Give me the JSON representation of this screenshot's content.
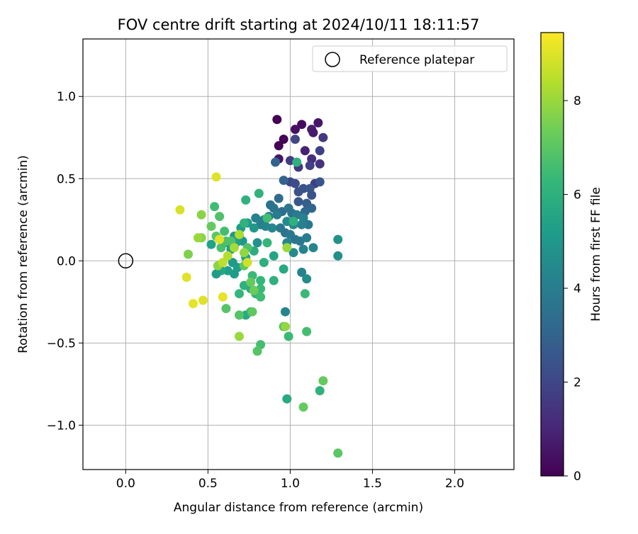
{
  "chart_data": {
    "type": "scatter",
    "title": "FOV centre drift starting at 2024/10/11 18:11:57",
    "xlabel": "Angular distance from reference (arcmin)",
    "ylabel": "Rotation from reference (arcmin)",
    "xlim": [
      -0.26,
      2.36
    ],
    "ylim": [
      -1.27,
      1.35
    ],
    "xticks": [
      0.0,
      0.5,
      1.0,
      1.5,
      2.0
    ],
    "xtick_labels": [
      "0.0",
      "0.5",
      "1.0",
      "1.5",
      "2.0"
    ],
    "yticks": [
      -1.0,
      -0.5,
      0.0,
      0.5,
      1.0
    ],
    "ytick_labels": [
      "−1.0",
      "−0.5",
      "0.0",
      "0.5",
      "1.0"
    ],
    "grid": true,
    "legend": {
      "position": "top-right",
      "entries": [
        {
          "label": "Reference platepar",
          "marker": "open-circle"
        }
      ]
    },
    "reference": {
      "x": 0.0,
      "y": 0.0
    },
    "colorbar": {
      "label": "Hours from first FF file",
      "range": [
        0,
        9.45
      ],
      "ticks": [
        0,
        2,
        4,
        6,
        8
      ],
      "tick_labels": [
        "0",
        "2",
        "4",
        "6",
        "8"
      ],
      "colormap": "viridis"
    },
    "points": [
      [
        0.92,
        0.86,
        0.0
      ],
      [
        0.96,
        0.74,
        0.1
      ],
      [
        0.93,
        0.7,
        0.05
      ],
      [
        1.07,
        0.83,
        0.3
      ],
      [
        1.03,
        0.8,
        0.4
      ],
      [
        1.17,
        0.84,
        0.6
      ],
      [
        1.13,
        0.8,
        0.8
      ],
      [
        1.14,
        0.78,
        0.7
      ],
      [
        1.2,
        0.75,
        1.6
      ],
      [
        0.93,
        0.62,
        0.5
      ],
      [
        1.09,
        0.67,
        0.9
      ],
      [
        1.18,
        0.67,
        1.8
      ],
      [
        1.13,
        0.62,
        1.2
      ],
      [
        1.03,
        0.74,
        2.0
      ],
      [
        1.05,
        0.57,
        1.5
      ],
      [
        1.12,
        0.58,
        1.8
      ],
      [
        1.18,
        0.59,
        1.4
      ],
      [
        1.0,
        0.61,
        1.6
      ],
      [
        1.0,
        0.48,
        2.0
      ],
      [
        1.03,
        0.47,
        2.2
      ],
      [
        1.15,
        0.47,
        1.7
      ],
      [
        1.18,
        0.48,
        2.5
      ],
      [
        1.05,
        0.42,
        2.3
      ],
      [
        1.08,
        0.44,
        2.4
      ],
      [
        1.12,
        0.44,
        2.6
      ],
      [
        1.13,
        0.4,
        2.4
      ],
      [
        1.05,
        0.36,
        2.6
      ],
      [
        1.1,
        0.35,
        2.8
      ],
      [
        1.13,
        0.32,
        3.0
      ],
      [
        1.09,
        0.3,
        3.2
      ],
      [
        0.96,
        0.49,
        3.0
      ],
      [
        0.91,
        0.6,
        3.0
      ],
      [
        0.93,
        0.38,
        3.3
      ],
      [
        0.88,
        0.34,
        3.5
      ],
      [
        0.9,
        0.32,
        3.6
      ],
      [
        0.95,
        0.3,
        3.4
      ],
      [
        0.99,
        0.32,
        3.7
      ],
      [
        1.01,
        0.29,
        3.6
      ],
      [
        1.04,
        0.28,
        3.9
      ],
      [
        1.08,
        0.26,
        4.2
      ],
      [
        0.92,
        0.28,
        3.9
      ],
      [
        0.87,
        0.27,
        4.0
      ],
      [
        0.84,
        0.25,
        4.1
      ],
      [
        0.82,
        0.22,
        4.0
      ],
      [
        0.79,
        0.26,
        4.2
      ],
      [
        0.85,
        0.21,
        4.3
      ],
      [
        0.89,
        0.2,
        4.4
      ],
      [
        0.94,
        0.2,
        3.8
      ],
      [
        0.97,
        0.17,
        3.6
      ],
      [
        1.0,
        0.16,
        3.8
      ],
      [
        1.03,
        0.13,
        3.7
      ],
      [
        1.06,
        0.12,
        3.8
      ],
      [
        1.1,
        0.14,
        4.0
      ],
      [
        1.11,
        0.22,
        3.8
      ],
      [
        1.07,
        0.22,
        4.1
      ],
      [
        1.02,
        0.22,
        4.4
      ],
      [
        0.98,
        0.24,
        4.5
      ],
      [
        0.98,
        0.11,
        4.3
      ],
      [
        1.02,
        0.05,
        4.5
      ],
      [
        1.08,
        0.07,
        4.2
      ],
      [
        1.14,
        0.08,
        4.3
      ],
      [
        1.07,
        -0.07,
        4.2
      ],
      [
        1.1,
        -0.11,
        4.6
      ],
      [
        0.97,
        -0.31,
        4.3
      ],
      [
        1.29,
        0.13,
        4.8
      ],
      [
        1.29,
        0.03,
        4.7
      ],
      [
        0.8,
        0.11,
        4.8
      ],
      [
        0.78,
        0.2,
        5.0
      ],
      [
        0.74,
        0.23,
        5.1
      ],
      [
        0.71,
        0.12,
        5.0
      ],
      [
        0.7,
        0.2,
        5.3
      ],
      [
        0.67,
        0.11,
        5.4
      ],
      [
        0.64,
        0.07,
        5.2
      ],
      [
        0.62,
        0.11,
        5.5
      ],
      [
        0.66,
        0.15,
        5.0
      ],
      [
        0.69,
        0.15,
        5.2
      ],
      [
        0.73,
        0.02,
        5.4
      ],
      [
        0.68,
        -0.04,
        5.3
      ],
      [
        0.66,
        -0.08,
        5.2
      ],
      [
        0.65,
        -0.01,
        5.1
      ],
      [
        0.62,
        -0.06,
        5.3
      ],
      [
        0.58,
        -0.06,
        5.6
      ],
      [
        0.55,
        -0.08,
        5.2
      ],
      [
        0.52,
        0.1,
        5.4
      ],
      [
        0.81,
        0.41,
        6.1
      ],
      [
        0.73,
        0.37,
        6.0
      ],
      [
        0.72,
        0.23,
        6.1
      ],
      [
        0.78,
        0.06,
        5.9
      ],
      [
        0.84,
        -0.01,
        6.0
      ],
      [
        0.86,
        0.11,
        6.2
      ],
      [
        0.9,
        0.03,
        5.5
      ],
      [
        0.96,
        -0.05,
        5.7
      ],
      [
        0.9,
        -0.12,
        6.0
      ],
      [
        0.82,
        -0.12,
        6.2
      ],
      [
        0.77,
        -0.09,
        6.4
      ],
      [
        0.72,
        -0.15,
        6.0
      ],
      [
        0.69,
        -0.2,
        6.2
      ],
      [
        0.76,
        -0.17,
        5.9
      ],
      [
        0.79,
        -0.2,
        6.1
      ],
      [
        0.73,
        -0.33,
        5.7
      ],
      [
        0.76,
        -0.31,
        6.3
      ],
      [
        1.04,
        0.6,
        6.0
      ],
      [
        1.02,
        0.24,
        6.0
      ],
      [
        0.86,
        0.26,
        6.6
      ],
      [
        0.82,
        -0.17,
        6.4
      ],
      [
        0.82,
        -0.22,
        6.5
      ],
      [
        0.96,
        -0.4,
        6.7
      ],
      [
        0.99,
        -0.46,
        6.4
      ],
      [
        1.09,
        -0.2,
        6.4
      ],
      [
        1.1,
        -0.43,
        6.6
      ],
      [
        0.82,
        -0.51,
        6.6
      ],
      [
        0.8,
        -0.55,
        6.9
      ],
      [
        0.98,
        -0.84,
        5.7
      ],
      [
        1.18,
        -0.79,
        6.1
      ],
      [
        1.2,
        -0.73,
        7.2
      ],
      [
        1.08,
        -0.89,
        7.2
      ],
      [
        1.29,
        -1.17,
        7.0
      ],
      [
        0.57,
        0.27,
        6.8
      ],
      [
        0.6,
        0.18,
        6.6
      ],
      [
        0.54,
        0.33,
        6.5
      ],
      [
        0.52,
        0.21,
        7.2
      ],
      [
        0.55,
        0.15,
        7.0
      ],
      [
        0.61,
        0.12,
        6.8
      ],
      [
        0.58,
        0.08,
        6.7
      ],
      [
        0.64,
        0.12,
        6.8
      ],
      [
        0.72,
        -0.03,
        7.1
      ],
      [
        0.76,
        -0.13,
        7.2
      ],
      [
        0.78,
        -0.18,
        7.3
      ],
      [
        0.74,
        0.08,
        6.8
      ],
      [
        0.69,
        -0.33,
        6.9
      ],
      [
        0.77,
        -0.31,
        7.1
      ],
      [
        0.61,
        -0.29,
        6.9
      ],
      [
        0.38,
        0.04,
        7.6
      ],
      [
        0.46,
        0.28,
        7.8
      ],
      [
        0.46,
        0.14,
        7.7
      ],
      [
        0.44,
        0.14,
        8.0
      ],
      [
        0.56,
        -0.03,
        7.8
      ],
      [
        0.66,
        0.08,
        8.2
      ],
      [
        0.69,
        0.16,
        8.3
      ],
      [
        0.62,
        0.03,
        8.4
      ],
      [
        0.59,
        -0.01,
        8.5
      ],
      [
        0.72,
        0.05,
        7.9
      ],
      [
        0.74,
        -0.01,
        8.8
      ],
      [
        0.69,
        -0.46,
        8.0
      ],
      [
        0.97,
        -0.4,
        7.9
      ],
      [
        0.98,
        0.08,
        8.0
      ],
      [
        0.33,
        0.31,
        8.9
      ],
      [
        0.55,
        0.51,
        9.0
      ],
      [
        0.37,
        -0.1,
        9.0
      ],
      [
        0.41,
        -0.26,
        9.1
      ],
      [
        0.47,
        -0.24,
        9.0
      ],
      [
        0.59,
        -0.22,
        9.1
      ],
      [
        0.57,
        0.13,
        9.0
      ]
    ]
  }
}
